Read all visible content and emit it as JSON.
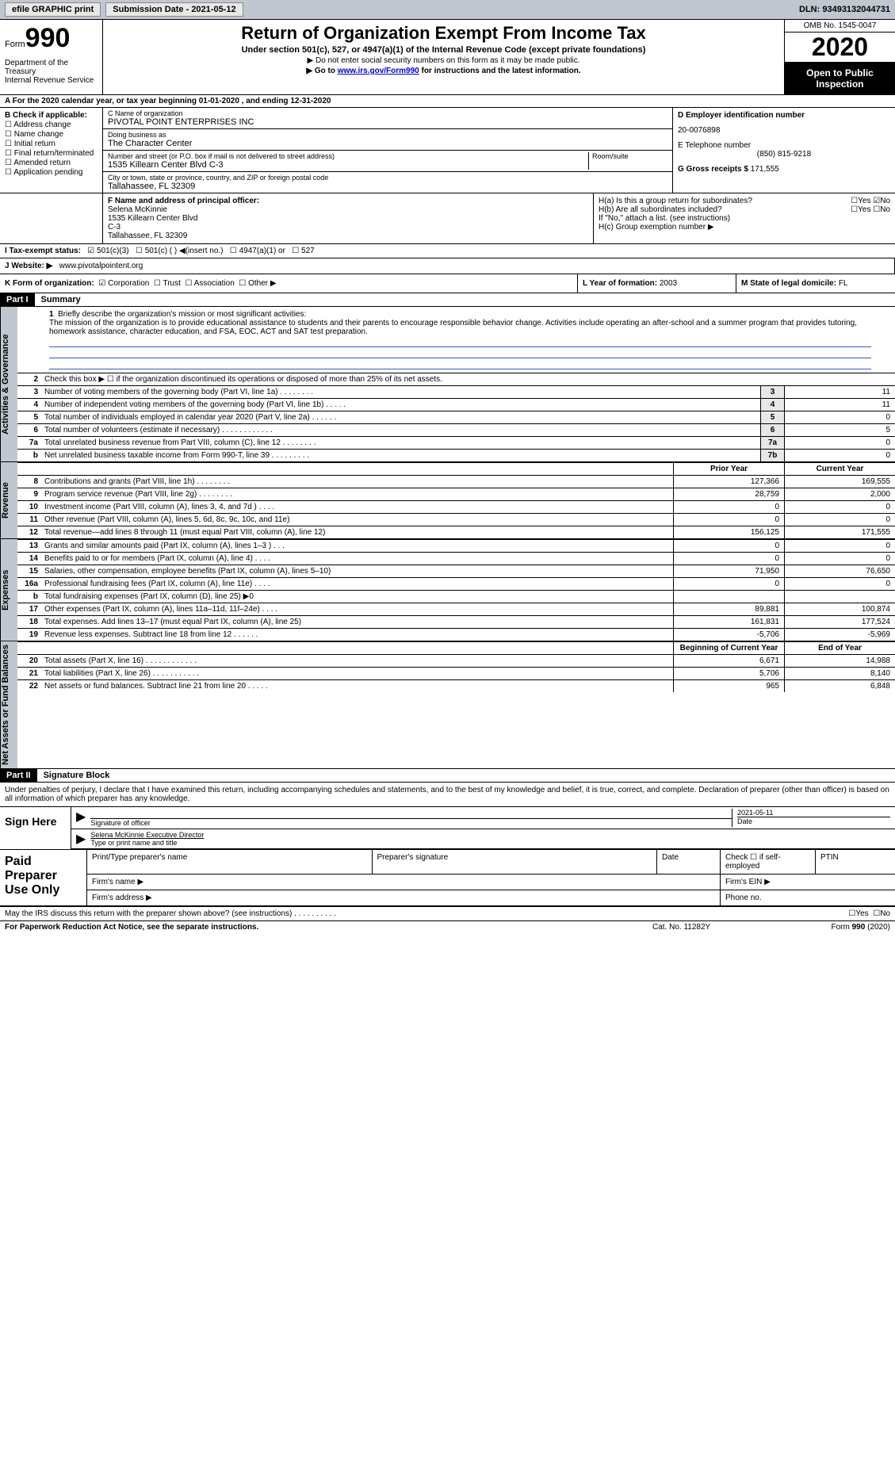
{
  "topbar": {
    "efile": "efile GRAPHIC print",
    "submission_label": "Submission Date - 2021-05-12",
    "dln_label": "DLN: 93493132044731"
  },
  "header": {
    "form_prefix": "Form",
    "form_number": "990",
    "dept": "Department of the Treasury\nInternal Revenue Service",
    "title": "Return of Organization Exempt From Income Tax",
    "subtitle": "Under section 501(c), 527, or 4947(a)(1) of the Internal Revenue Code (except private foundations)",
    "note1": "▶ Do not enter social security numbers on this form as it may be made public.",
    "note2_pre": "▶ Go to ",
    "note2_link": "www.irs.gov/Form990",
    "note2_post": " for instructions and the latest information.",
    "omb": "OMB No. 1545-0047",
    "year": "2020",
    "open": "Open to Public Inspection"
  },
  "row_a": "A For the 2020 calendar year, or tax year beginning 01-01-2020   , and ending 12-31-2020",
  "col_b": {
    "label": "B Check if applicable:",
    "opts": [
      "Address change",
      "Name change",
      "Initial return",
      "Final return/terminated",
      "Amended return",
      "Application pending"
    ]
  },
  "col_c": {
    "name_lbl": "C Name of organization",
    "name": "PIVOTAL POINT ENTERPRISES INC",
    "dba_lbl": "Doing business as",
    "dba": "The Character Center",
    "addr_lbl": "Number and street (or P.O. box if mail is not delivered to street address)",
    "addr": "1535 Killearn Center Blvd C-3",
    "room_lbl": "Room/suite",
    "city_lbl": "City or town, state or province, country, and ZIP or foreign postal code",
    "city": "Tallahassee, FL  32309"
  },
  "col_d": {
    "ein_lbl": "D Employer identification number",
    "ein": "20-0076898",
    "tel_lbl": "E Telephone number",
    "tel": "(850) 815-9218",
    "gross_lbl": "G Gross receipts $",
    "gross": "171,555"
  },
  "officer": {
    "lbl": "F  Name and address of principal officer:",
    "name": "Selena McKinnie",
    "addr1": "1535 Killearn Center Blvd",
    "addr2": "C-3",
    "city": "Tallahassee, FL  32309"
  },
  "h": {
    "a": "H(a)  Is this a group return for subordinates?",
    "b": "H(b)  Are all subordinates included?",
    "b_note": "If \"No,\" attach a list. (see instructions)",
    "c": "H(c)  Group exemption number ▶",
    "yes": "Yes",
    "no": "No"
  },
  "row_i": {
    "lbl": "I  Tax-exempt status:",
    "opts": [
      "501(c)(3)",
      "501(c) (  ) ◀(insert no.)",
      "4947(a)(1) or",
      "527"
    ]
  },
  "row_j": {
    "lbl": "J  Website: ▶",
    "val": "www.pivotalpointent.org"
  },
  "row_k": {
    "lbl": "K Form of organization:",
    "opts": [
      "Corporation",
      "Trust",
      "Association",
      "Other ▶"
    ],
    "l_lbl": "L Year of formation:",
    "l_val": "2003",
    "m_lbl": "M State of legal domicile:",
    "m_val": "FL"
  },
  "part1": {
    "hdr": "Part I",
    "title": "Summary"
  },
  "governance": {
    "label": "Activities & Governance",
    "l1": "Briefly describe the organization's mission or most significant activities:",
    "mission": "The mission of the organization is to provide educational assistance to students and their parents to encourage responsible behavior change. Activities include operating an after-school and a summer program that provides tutoring, homework assistance, character education, and FSA, EOC, ACT and SAT test preparation.",
    "l2": "Check this box ▶ ☐  if the organization discontinued its operations or disposed of more than 25% of its net assets.",
    "lines": [
      {
        "n": "3",
        "d": "Number of voting members of the governing body (Part VI, line 1a)  .    .    .    .    .    .    .    .",
        "b": "3",
        "v": "11"
      },
      {
        "n": "4",
        "d": "Number of independent voting members of the governing body (Part VI, line 1b)  .    .    .    .    .",
        "b": "4",
        "v": "11"
      },
      {
        "n": "5",
        "d": "Total number of individuals employed in calendar year 2020 (Part V, line 2a)  .    .    .    .    .    .",
        "b": "5",
        "v": "0"
      },
      {
        "n": "6",
        "d": "Total number of volunteers (estimate if necessary)  .    .    .    .    .    .    .    .    .    .    .    .",
        "b": "6",
        "v": "5"
      },
      {
        "n": "7a",
        "d": "Total unrelated business revenue from Part VIII, column (C), line 12  .    .    .    .    .    .    .    .",
        "b": "7a",
        "v": "0"
      },
      {
        "n": "b",
        "d": "Net unrelated business taxable income from Form 990-T, line 39  .    .    .    .    .    .    .    .    .",
        "b": "7b",
        "v": "0"
      }
    ]
  },
  "cols": {
    "prior": "Prior Year",
    "current": "Current Year"
  },
  "revenue": {
    "label": "Revenue",
    "lines": [
      {
        "n": "8",
        "d": "Contributions and grants (Part VIII, line 1h)  .    .    .    .    .    .    .    .",
        "p": "127,366",
        "c": "169,555"
      },
      {
        "n": "9",
        "d": "Program service revenue (Part VIII, line 2g)  .    .    .    .    .    .    .    .",
        "p": "28,759",
        "c": "2,000"
      },
      {
        "n": "10",
        "d": "Investment income (Part VIII, column (A), lines 3, 4, and 7d )  .    .    .    .",
        "p": "0",
        "c": "0"
      },
      {
        "n": "11",
        "d": "Other revenue (Part VIII, column (A), lines 5, 6d, 8c, 9c, 10c, and 11e)",
        "p": "0",
        "c": "0"
      },
      {
        "n": "12",
        "d": "Total revenue—add lines 8 through 11 (must equal Part VIII, column (A), line 12)",
        "p": "156,125",
        "c": "171,555"
      }
    ]
  },
  "expenses": {
    "label": "Expenses",
    "lines": [
      {
        "n": "13",
        "d": "Grants and similar amounts paid (Part IX, column (A), lines 1–3 )  .    .    .",
        "p": "0",
        "c": "0"
      },
      {
        "n": "14",
        "d": "Benefits paid to or for members (Part IX, column (A), line 4)  .    .    .    .",
        "p": "0",
        "c": "0"
      },
      {
        "n": "15",
        "d": "Salaries, other compensation, employee benefits (Part IX, column (A), lines 5–10)",
        "p": "71,950",
        "c": "76,650"
      },
      {
        "n": "16a",
        "d": "Professional fundraising fees (Part IX, column (A), line 11e)  .    .    .    .",
        "p": "0",
        "c": "0"
      },
      {
        "n": "b",
        "d": "Total fundraising expenses (Part IX, column (D), line 25) ▶0",
        "p": "",
        "c": ""
      },
      {
        "n": "17",
        "d": "Other expenses (Part IX, column (A), lines 11a–11d, 11f–24e)  .    .    .    .",
        "p": "89,881",
        "c": "100,874"
      },
      {
        "n": "18",
        "d": "Total expenses. Add lines 13–17 (must equal Part IX, column (A), line 25)",
        "p": "161,831",
        "c": "177,524"
      },
      {
        "n": "19",
        "d": "Revenue less expenses. Subtract line 18 from line 12  .    .    .    .    .    .",
        "p": "-5,706",
        "c": "-5,969"
      }
    ]
  },
  "cols2": {
    "prior": "Beginning of Current Year",
    "current": "End of Year"
  },
  "netassets": {
    "label": "Net Assets or Fund Balances",
    "lines": [
      {
        "n": "20",
        "d": "Total assets (Part X, line 16)  .    .    .    .    .    .    .    .    .    .    .    .",
        "p": "6,671",
        "c": "14,988"
      },
      {
        "n": "21",
        "d": "Total liabilities (Part X, line 26)  .    .    .    .    .    .    .    .    .    .    .",
        "p": "5,706",
        "c": "8,140"
      },
      {
        "n": "22",
        "d": "Net assets or fund balances. Subtract line 21 from line 20  .    .    .    .    .",
        "p": "965",
        "c": "6,848"
      }
    ]
  },
  "part2": {
    "hdr": "Part II",
    "title": "Signature Block"
  },
  "sig": {
    "decl": "Under penalties of perjury, I declare that I have examined this return, including accompanying schedules and statements, and to the best of my knowledge and belief, it is true, correct, and complete. Declaration of preparer (other than officer) is based on all information of which preparer has any knowledge.",
    "here": "Sign Here",
    "sig_lbl": "Signature of officer",
    "date_lbl": "Date",
    "date": "2021-05-11",
    "name": "Selena McKinnie  Executive Director",
    "name_lbl": "Type or print name and title"
  },
  "prep": {
    "title": "Paid Preparer Use Only",
    "h": [
      "Print/Type preparer's name",
      "Preparer's signature",
      "Date",
      "Check ☐ if self-employed",
      "PTIN"
    ],
    "firm_name": "Firm's name  ▶",
    "firm_ein": "Firm's EIN ▶",
    "firm_addr": "Firm's address ▶",
    "phone": "Phone no."
  },
  "discuss": "May the IRS discuss this return with the preparer shown above? (see instructions)  .    .    .    .    .    .    .    .    .    .",
  "bottom": {
    "l": "For Paperwork Reduction Act Notice, see the separate instructions.",
    "m": "Cat. No. 11282Y",
    "r_pre": "Form ",
    "r_b": "990",
    "r_post": " (2020)"
  }
}
